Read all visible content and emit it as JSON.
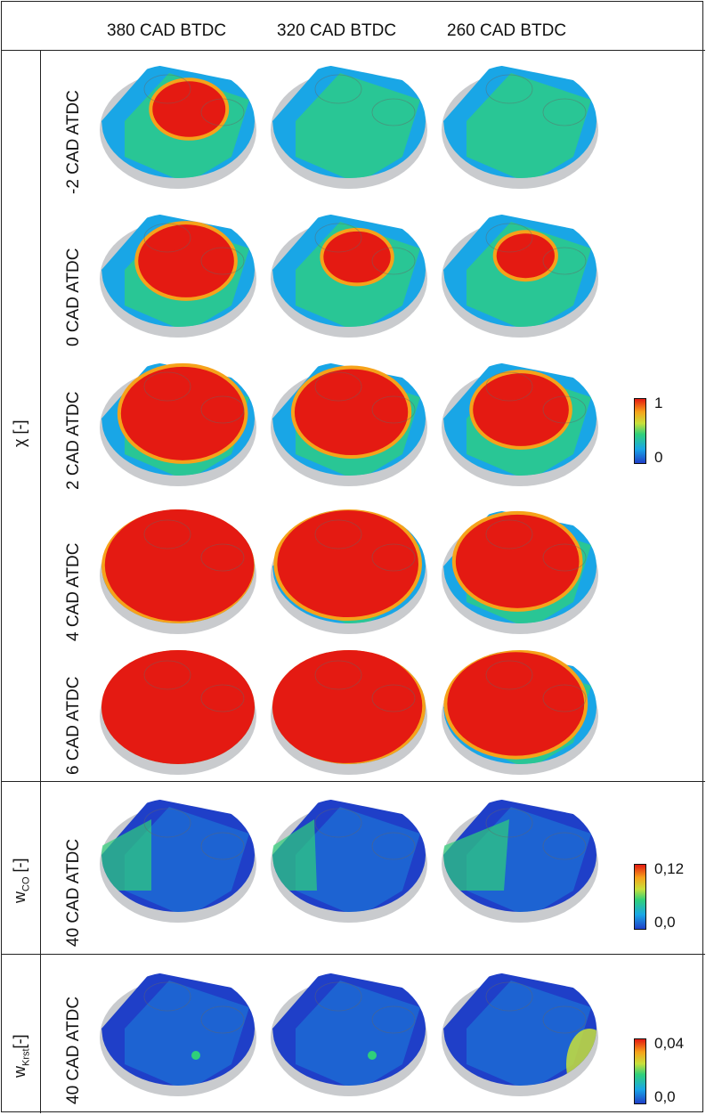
{
  "columns": [
    "380 CAD BTDC",
    "320 CAD BTDC",
    "260 CAD BTDC"
  ],
  "groups": [
    {
      "quantity": "χ [-]",
      "colorbar": {
        "max": "1",
        "min": "0"
      },
      "rows": [
        {
          "label": "-2 CAD ATDC",
          "red_fraction": [
            0.15,
            0.0,
            0.0
          ]
        },
        {
          "label": "0 CAD ATDC",
          "red_fraction": [
            0.3,
            0.12,
            0.08
          ]
        },
        {
          "label": "2 CAD ATDC",
          "red_fraction": [
            0.55,
            0.45,
            0.3
          ]
        },
        {
          "label": "4 CAD ATDC",
          "red_fraction": [
            0.85,
            0.75,
            0.55
          ]
        },
        {
          "label": "6 CAD ATDC",
          "red_fraction": [
            0.95,
            0.88,
            0.7
          ]
        }
      ]
    },
    {
      "quantity_symbol": "w",
      "quantity_sub": "CO",
      "quantity_unit": "[-]",
      "colorbar": {
        "max": "0,12",
        "min": "0,0"
      },
      "rows": [
        {
          "label": "40 CAD ATDC"
        }
      ]
    },
    {
      "quantity_symbol": "w",
      "quantity_sub": "Krst",
      "quantity_unit": "[-]",
      "colorbar": {
        "max": "0,04",
        "min": "0,0"
      },
      "rows": [
        {
          "label": "40 CAD ATDC"
        }
      ]
    }
  ],
  "colors": {
    "blue": "#1f3fc8",
    "cyan": "#19a6e6",
    "green": "#2fd07a",
    "yellow": "#c8e03a",
    "orange": "#f6a21a",
    "red": "#e41a12",
    "rim": "#c9cbce"
  }
}
